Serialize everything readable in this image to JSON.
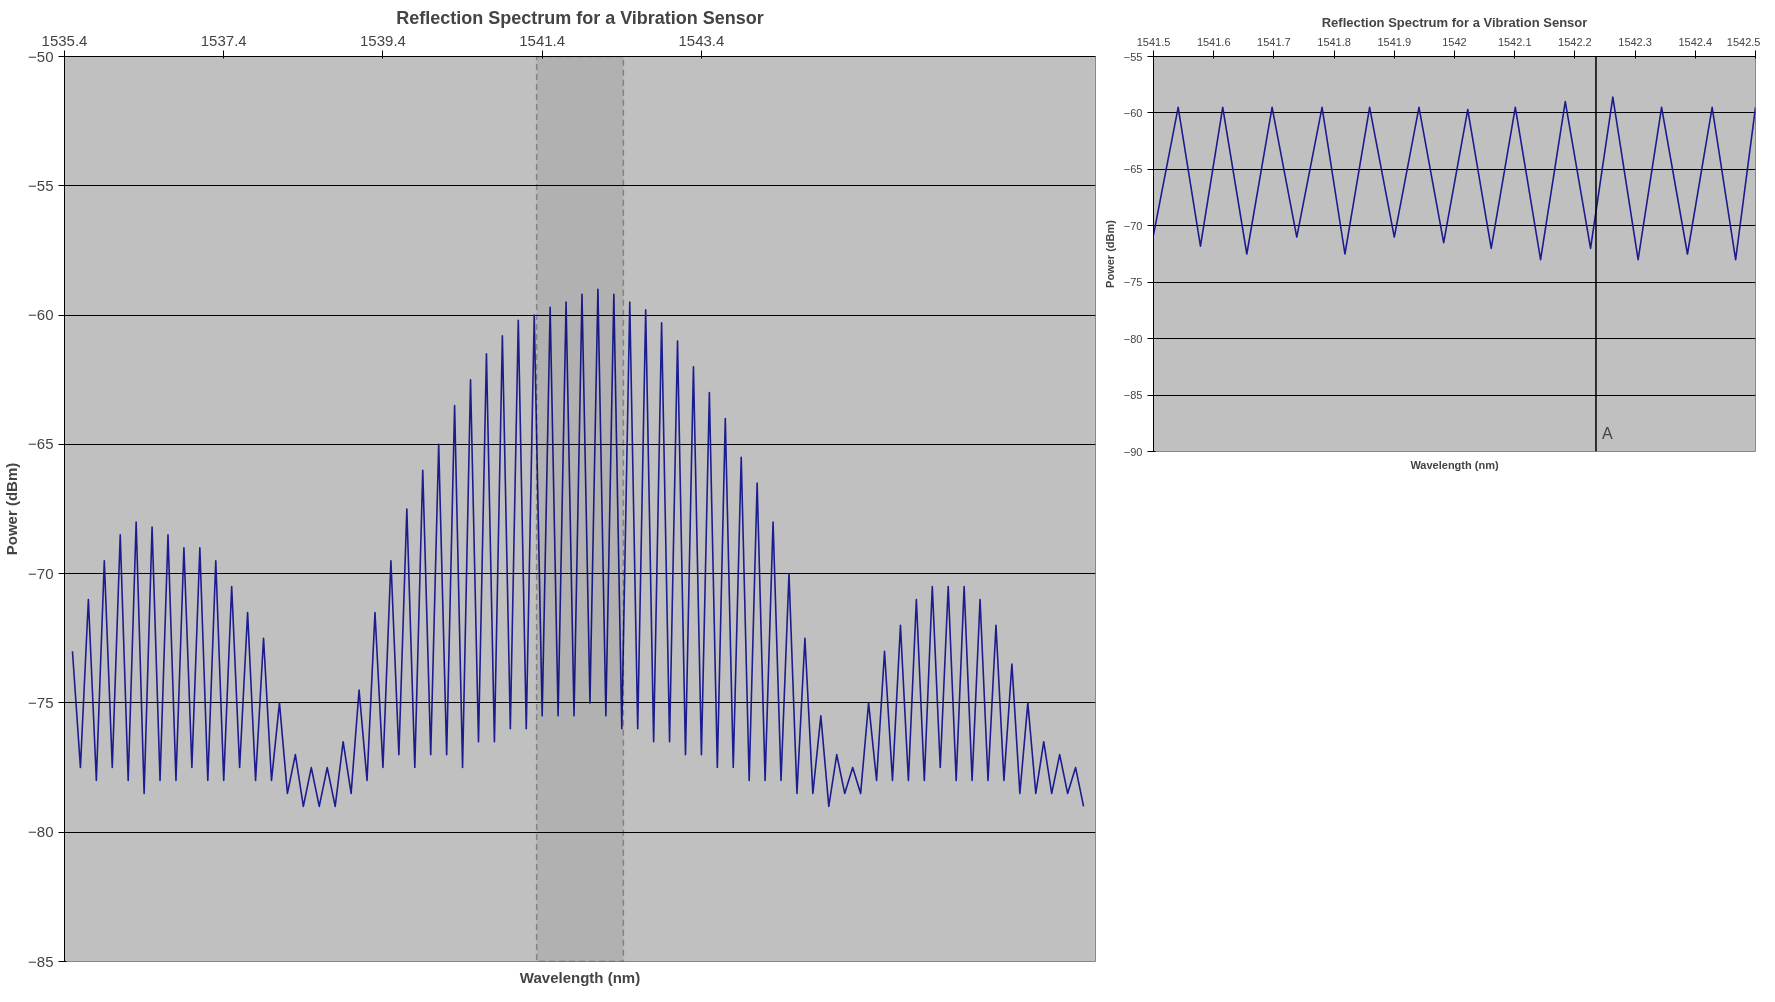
{
  "chart_data": [
    {
      "type": "line",
      "title": "Reflection Spectrum for a Vibration Sensor",
      "xlabel": "Wavelength (nm)",
      "ylabel": "Power (dBm)",
      "xlim": [
        1535.4,
        1548.35
      ],
      "xticks": [
        1535.4,
        1537.4,
        1539.4,
        1541.4,
        1543.4
      ],
      "ylim": [
        -85,
        -50
      ],
      "yticks": [
        -85,
        -80,
        -75,
        -70,
        -65,
        -60,
        -55,
        -50
      ],
      "grid": "y",
      "marker": "none",
      "line_style": "solid",
      "bands": [
        {
          "axis": "x",
          "from": 1541.33,
          "to": 1542.42,
          "label": null,
          "color": "#000000"
        }
      ],
      "x": [
        1535.5,
        1535.6,
        1535.7,
        1535.8,
        1535.9,
        1536.0,
        1536.1,
        1536.2,
        1536.3,
        1536.4,
        1536.5,
        1536.6,
        1536.7,
        1536.8,
        1536.9,
        1537.0,
        1537.1,
        1537.2,
        1537.3,
        1537.4,
        1537.5,
        1537.6,
        1537.7,
        1537.8,
        1537.9,
        1538.0,
        1538.1,
        1538.2,
        1538.3,
        1538.4,
        1538.5,
        1538.6,
        1538.7,
        1538.8,
        1538.9,
        1539.0,
        1539.1,
        1539.2,
        1539.3,
        1539.4,
        1539.5,
        1539.6,
        1539.7,
        1539.8,
        1539.9,
        1540.0,
        1540.1,
        1540.2,
        1540.3,
        1540.4,
        1540.5,
        1540.6,
        1540.7,
        1540.8,
        1540.9,
        1541.0,
        1541.1,
        1541.2,
        1541.3,
        1541.4,
        1541.5,
        1541.6,
        1541.7,
        1541.8,
        1541.9,
        1542.0,
        1542.1,
        1542.2,
        1542.3,
        1542.4,
        1542.5,
        1542.6,
        1542.7,
        1542.8,
        1542.9,
        1543.0,
        1543.1,
        1543.2,
        1543.3,
        1543.4,
        1543.5,
        1543.6,
        1543.7,
        1543.8,
        1543.9,
        1544.0,
        1544.1,
        1544.2,
        1544.3,
        1544.4,
        1544.5,
        1544.6,
        1544.7,
        1544.8,
        1544.9,
        1545.0,
        1545.1,
        1545.2,
        1545.3,
        1545.4,
        1545.5,
        1545.6,
        1545.7,
        1545.8,
        1545.9,
        1546.0,
        1546.1,
        1546.2,
        1546.3,
        1546.4,
        1546.5,
        1546.6,
        1546.7,
        1546.8,
        1546.9,
        1547.0,
        1547.1,
        1547.2,
        1547.3,
        1547.4,
        1547.5,
        1547.6,
        1547.7,
        1547.8,
        1547.9,
        1548.0,
        1548.1,
        1548.2
      ],
      "series": [
        {
          "color": "#1c1c8f",
          "values": [
            -73,
            -77.5,
            -71,
            -78,
            -69.5,
            -77.5,
            -68.5,
            -78,
            -68,
            -78.5,
            -68.2,
            -78,
            -68.5,
            -78,
            -69,
            -77.5,
            -69,
            -78,
            -69.5,
            -78,
            -70.5,
            -77.5,
            -71.5,
            -78,
            -72.5,
            -78,
            -75,
            -78.5,
            -77,
            -79,
            -77.5,
            -79,
            -77.5,
            -79,
            -76.5,
            -78.5,
            -74.5,
            -78,
            -71.5,
            -77.5,
            -69.5,
            -77,
            -67.5,
            -77.5,
            -66,
            -77,
            -65,
            -77,
            -63.5,
            -77.5,
            -62.5,
            -76.5,
            -61.5,
            -76.5,
            -60.8,
            -76,
            -60.2,
            -76,
            -60,
            -75.5,
            -59.7,
            -75.5,
            -59.5,
            -75.5,
            -59.2,
            -75,
            -59,
            -75.5,
            -59.2,
            -76,
            -59.5,
            -76,
            -59.8,
            -76.5,
            -60.3,
            -76.5,
            -61,
            -77,
            -62,
            -77,
            -63,
            -77.5,
            -64,
            -77.5,
            -65.5,
            -78,
            -66.5,
            -78,
            -68,
            -78,
            -70,
            -78.5,
            -72.5,
            -78.5,
            -75.5,
            -79,
            -77,
            -78.5,
            -77.5,
            -78.5,
            -75,
            -78,
            -73,
            -78,
            -72,
            -78,
            -71,
            -78,
            -70.5,
            -77.5,
            -70.5,
            -78,
            -70.5,
            -78,
            -71,
            -78,
            -72,
            -78,
            -73.5,
            -78.5,
            -75,
            -78.5,
            -76.5,
            -78.5,
            -77,
            -78.5,
            -77.5,
            -79
          ]
        }
      ]
    },
    {
      "type": "line",
      "title": "Reflection Spectrum for a Vibration Sensor",
      "xlabel": "Wavelength (nm)",
      "ylabel": "Power (dBm)",
      "xlim": [
        1541.5,
        1542.5
      ],
      "xticks": [
        1541.5,
        1541.6,
        1541.7,
        1541.8,
        1541.9,
        1542,
        1542.1,
        1542.2,
        1542.3,
        1542.4,
        1542.5
      ],
      "ylim": [
        -90,
        -55
      ],
      "yticks": [
        -90,
        -85,
        -80,
        -75,
        -70,
        -65,
        -60,
        -55
      ],
      "grid": "y",
      "marker": "none",
      "line_style": "solid",
      "ref_lines": [
        {
          "axis": "x",
          "value": 1542.235,
          "label": "A",
          "color": "#000000"
        }
      ],
      "x": [
        1541.5,
        1541.541,
        1541.578,
        1541.615,
        1541.655,
        1541.697,
        1541.738,
        1541.78,
        1541.818,
        1541.859,
        1541.9,
        1541.941,
        1541.982,
        1542.022,
        1542.061,
        1542.101,
        1542.143,
        1542.184,
        1542.226,
        1542.263,
        1542.305,
        1542.344,
        1542.387,
        1542.428,
        1542.467,
        1542.5
      ],
      "series": [
        {
          "color": "#1c1c8f",
          "values": [
            -70.8,
            -59.5,
            -71.8,
            -59.5,
            -72.5,
            -59.5,
            -71,
            -59.5,
            -72.5,
            -59.5,
            -71,
            -59.5,
            -71.5,
            -59.7,
            -72,
            -59.5,
            -73,
            -59,
            -72,
            -58.6,
            -73,
            -59.5,
            -72.5,
            -59.5,
            -73,
            -59.5
          ]
        }
      ]
    }
  ]
}
